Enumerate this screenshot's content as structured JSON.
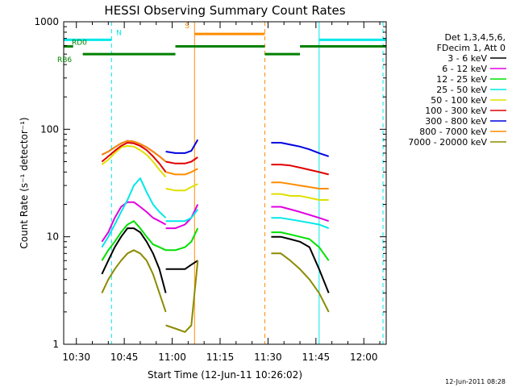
{
  "chart_data": {
    "type": "line",
    "title": "HESSI Observing Summary Count Rates",
    "xlabel": "Start Time (12-Jun-11 10:26:02)",
    "ylabel": "Count Rate (s⁻¹ detector⁻¹)",
    "x_scale": "time",
    "x_range": [
      "10:26:02",
      "12:07:00"
    ],
    "x_ticks": [
      "10:30",
      "10:45",
      "11:00",
      "11:15",
      "11:30",
      "11:45",
      "12:00"
    ],
    "y_scale": "log",
    "ylim": [
      1,
      1000
    ],
    "y_ticks": [
      "1",
      "10",
      "100",
      "1000"
    ],
    "legend": {
      "placement": "right",
      "header": [
        "Det 1,3,4,5,6,",
        "FDecim 1, Att 0"
      ],
      "entries": [
        {
          "name": "3 - 6 keV",
          "color": "#000000"
        },
        {
          "name": "6 - 12 keV",
          "color": "#e000e0"
        },
        {
          "name": "12 - 25 keV",
          "color": "#00e000"
        },
        {
          "name": "25 - 50 keV",
          "color": "#00e8e8"
        },
        {
          "name": "50 - 100 keV",
          "color": "#e0e000"
        },
        {
          "name": "100 - 300 keV",
          "color": "#e00000"
        },
        {
          "name": "300 - 800 keV",
          "color": "#0000e0"
        },
        {
          "name": "800 - 7000 keV",
          "color": "#ff8c00"
        },
        {
          "name": "7000 - 20000 keV",
          "color": "#8b8b00"
        }
      ]
    },
    "series": [
      {
        "name": "3 - 6 keV",
        "color": "#000000",
        "segments": [
          {
            "x": [
              "10:38",
              "10:40",
              "10:42",
              "10:44",
              "10:46",
              "10:48",
              "10:50",
              "10:52",
              "10:54",
              "10:56",
              "10:58"
            ],
            "y": [
              4.5,
              6,
              8,
              10,
              12,
              12,
              11,
              9,
              7,
              5,
              3
            ]
          },
          {
            "x": [
              "10:58",
              "11:01",
              "11:04",
              "11:06",
              "11:08"
            ],
            "y": [
              5,
              5,
              5,
              5.5,
              6
            ]
          },
          {
            "x": [
              "11:31",
              "11:34",
              "11:37",
              "11:40",
              "11:43",
              "11:46",
              "11:49"
            ],
            "y": [
              10,
              10,
              9.5,
              9,
              8,
              5,
              3
            ]
          }
        ]
      },
      {
        "name": "6 - 12 keV",
        "color": "#e000e0",
        "segments": [
          {
            "x": [
              "10:38",
              "10:40",
              "10:42",
              "10:44",
              "10:46",
              "10:48",
              "10:50",
              "10:52",
              "10:54",
              "10:56",
              "10:58"
            ],
            "y": [
              9,
              11,
              15,
              19,
              21,
              21,
              19,
              17,
              15,
              14,
              13
            ]
          },
          {
            "x": [
              "10:58",
              "11:01",
              "11:04",
              "11:06",
              "11:08"
            ],
            "y": [
              12,
              12,
              13,
              15,
              20
            ]
          },
          {
            "x": [
              "11:31",
              "11:34",
              "11:37",
              "11:40",
              "11:43",
              "11:46",
              "11:49"
            ],
            "y": [
              19,
              19,
              18,
              17,
              16,
              15,
              14
            ]
          }
        ]
      },
      {
        "name": "12 - 25 keV",
        "color": "#00e000",
        "segments": [
          {
            "x": [
              "10:38",
              "10:40",
              "10:42",
              "10:44",
              "10:46",
              "10:48",
              "10:50",
              "10:52",
              "10:54",
              "10:56",
              "10:58"
            ],
            "y": [
              6,
              7.5,
              9,
              11,
              13,
              14,
              12,
              10,
              8.5,
              8,
              7.5
            ]
          },
          {
            "x": [
              "10:58",
              "11:01",
              "11:04",
              "11:06",
              "11:08"
            ],
            "y": [
              7.5,
              7.5,
              8,
              9,
              12
            ]
          },
          {
            "x": [
              "11:31",
              "11:34",
              "11:37",
              "11:40",
              "11:43",
              "11:46",
              "11:49"
            ],
            "y": [
              11,
              11,
              10.5,
              10,
              9.5,
              8,
              6
            ]
          }
        ]
      },
      {
        "name": "25 - 50 keV",
        "color": "#00e8e8",
        "segments": [
          {
            "x": [
              "10:38",
              "10:40",
              "10:42",
              "10:44",
              "10:46",
              "10:48",
              "10:50",
              "10:52",
              "10:54",
              "10:56",
              "10:58"
            ],
            "y": [
              8,
              10,
              13,
              17,
              22,
              30,
              35,
              26,
              20,
              17,
              15
            ]
          },
          {
            "x": [
              "10:58",
              "11:01",
              "11:04",
              "11:06",
              "11:08"
            ],
            "y": [
              14,
              14,
              14,
              15,
              18
            ]
          },
          {
            "x": [
              "11:31",
              "11:34",
              "11:37",
              "11:40",
              "11:43",
              "11:46",
              "11:49"
            ],
            "y": [
              15,
              15,
              14.5,
              14,
              13.5,
              13,
              12
            ]
          }
        ]
      },
      {
        "name": "50 - 100 keV",
        "color": "#e0e000",
        "segments": [
          {
            "x": [
              "10:38",
              "10:40",
              "10:42",
              "10:44",
              "10:46",
              "10:48",
              "10:50",
              "10:52",
              "10:54",
              "10:56",
              "10:58"
            ],
            "y": [
              47,
              52,
              60,
              68,
              70,
              69,
              64,
              58,
              50,
              42,
              36
            ]
          },
          {
            "x": [
              "10:58",
              "11:01",
              "11:04",
              "11:06",
              "11:08"
            ],
            "y": [
              28,
              27,
              27,
              29,
              31
            ]
          },
          {
            "x": [
              "11:31",
              "11:34",
              "11:37",
              "11:40",
              "11:43",
              "11:46",
              "11:49"
            ],
            "y": [
              25,
              25,
              24,
              24,
              23,
              22,
              22
            ]
          }
        ]
      },
      {
        "name": "100 - 300 keV",
        "color": "#e00000",
        "segments": [
          {
            "x": [
              "10:38",
              "10:40",
              "10:42",
              "10:44",
              "10:46",
              "10:48",
              "10:50",
              "10:52",
              "10:54",
              "10:56",
              "10:58"
            ],
            "y": [
              50,
              56,
              63,
              70,
              75,
              74,
              70,
              64,
              56,
              48,
              40
            ]
          },
          {
            "x": [
              "10:58",
              "11:01",
              "11:04",
              "11:06",
              "11:08"
            ],
            "y": [
              50,
              48,
              48,
              50,
              55
            ]
          },
          {
            "x": [
              "11:31",
              "11:34",
              "11:37",
              "11:40",
              "11:43",
              "11:46",
              "11:49"
            ],
            "y": [
              47,
              47,
              46,
              44,
              42,
              40,
              38
            ]
          }
        ]
      },
      {
        "name": "300 - 800 keV",
        "color": "#0000e0",
        "segments": [
          {
            "x": [
              "10:38",
              "10:40",
              "10:42",
              "10:44",
              "10:46",
              "10:48",
              "10:50",
              "10:52",
              "10:54",
              "10:56",
              "10:58"
            ],
            "y": [
              58,
              62,
              68,
              74,
              78,
              77,
              73,
              68,
              62,
              56,
              50
            ]
          },
          {
            "x": [
              "10:58",
              "11:01",
              "11:04",
              "11:06",
              "11:08"
            ],
            "y": [
              62,
              60,
              60,
              63,
              80
            ]
          },
          {
            "x": [
              "11:31",
              "11:34",
              "11:37",
              "11:40",
              "11:43",
              "11:46",
              "11:49"
            ],
            "y": [
              75,
              75,
              72,
              69,
              65,
              60,
              56
            ]
          }
        ]
      },
      {
        "name": "800 - 7000 keV",
        "color": "#ff8c00",
        "segments": [
          {
            "x": [
              "10:38",
              "10:40",
              "10:42",
              "10:44",
              "10:46",
              "10:48",
              "10:50",
              "10:52",
              "10:54",
              "10:56",
              "10:58"
            ],
            "y": [
              58,
              62,
              68,
              74,
              78,
              77,
              73,
              68,
              62,
              56,
              50
            ]
          },
          {
            "x": [
              "10:58",
              "11:01",
              "11:04",
              "11:06",
              "11:08"
            ],
            "y": [
              40,
              38,
              38,
              40,
              43
            ]
          },
          {
            "x": [
              "11:31",
              "11:34",
              "11:37",
              "11:40",
              "11:43",
              "11:46",
              "11:49"
            ],
            "y": [
              32,
              32,
              31,
              30,
              29,
              28,
              28
            ]
          }
        ]
      },
      {
        "name": "7000 - 20000 keV",
        "color": "#8b8b00",
        "segments": [
          {
            "x": [
              "10:38",
              "10:40",
              "10:42",
              "10:44",
              "10:46",
              "10:48",
              "10:50",
              "10:52",
              "10:54",
              "10:56",
              "10:58"
            ],
            "y": [
              3,
              4,
              5,
              6,
              7,
              7.5,
              7,
              6,
              4.5,
              3,
              2
            ]
          },
          {
            "x": [
              "10:58",
              "11:01",
              "11:04",
              "11:06",
              "11:08"
            ],
            "y": [
              1.5,
              1.4,
              1.3,
              1.5,
              6
            ]
          },
          {
            "x": [
              "11:31",
              "11:34",
              "11:37",
              "11:40",
              "11:43",
              "11:46",
              "11:49"
            ],
            "y": [
              7,
              7,
              6,
              5,
              4,
              3,
              2
            ]
          }
        ]
      }
    ],
    "flag_bars": [
      {
        "label": "N",
        "color": "#00e8e8",
        "y": 680,
        "segments": [
          [
            "10:26:02",
            "10:41:00"
          ],
          [
            "11:46:00",
            "12:07:00"
          ]
        ]
      },
      {
        "label": "S",
        "color": "#ff8c00",
        "y": 770,
        "segments": [
          [
            "11:07:00",
            "11:29:00"
          ]
        ]
      },
      {
        "label": "RD0",
        "color": "#008000",
        "y": 590,
        "segments": [
          [
            "10:26:02",
            "10:29:00"
          ],
          [
            "11:01:00",
            "11:29:00"
          ],
          [
            "11:40:00",
            "12:07:00"
          ]
        ]
      },
      {
        "label": "RB6",
        "color": "#008000",
        "y": 500,
        "segments": [
          [
            "10:32:00",
            "11:01:00"
          ],
          [
            "11:29:00",
            "11:40:00"
          ]
        ]
      }
    ],
    "vertical_markers": [
      {
        "color": "#00e8e8",
        "style": "solid",
        "x": "10:26:02"
      },
      {
        "color": "#00e8e8",
        "style": "dashed",
        "x": "10:41:00"
      },
      {
        "color": "#ff8c00",
        "style": "solid",
        "x": "11:07:00"
      },
      {
        "color": "#ff8c00",
        "style": "dashed",
        "x": "11:29:00"
      },
      {
        "color": "#00e8e8",
        "style": "solid",
        "x": "11:46:00"
      },
      {
        "color": "#00e8e8",
        "style": "dashed",
        "x": "12:06:00"
      }
    ],
    "footer_text": "12-Jun-2011 08:28"
  }
}
